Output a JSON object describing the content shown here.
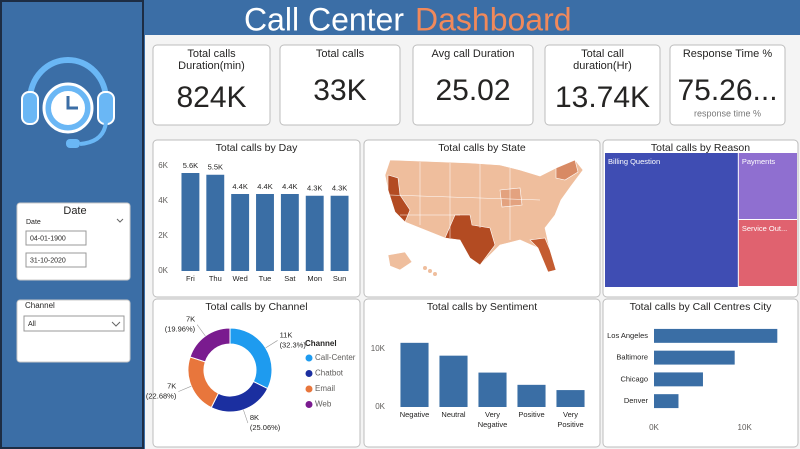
{
  "header": {
    "title_main": "Call Center",
    "title_accent": "Dashboard"
  },
  "kpis": [
    {
      "label": [
        "Total calls",
        "Duration(min)"
      ],
      "value": "824K"
    },
    {
      "label": [
        "Total calls"
      ],
      "value": "33K"
    },
    {
      "label": [
        "Avg call Duration"
      ],
      "value": "25.02"
    },
    {
      "label": [
        "Total call",
        "duration(Hr)"
      ],
      "value": "13.74K"
    },
    {
      "label": [
        "Response Time %"
      ],
      "value": "75.26...",
      "sublabel": "response time %"
    }
  ],
  "date_filter": {
    "title": "Date",
    "label": "Date",
    "start": "04-01-1900",
    "end": "31-10-2020"
  },
  "channel_filter": {
    "title": "Channel",
    "value": "All"
  },
  "chart_data": [
    {
      "type": "bar",
      "title": "Total calls by Day",
      "categories": [
        "Fri",
        "Thu",
        "Wed",
        "Tue",
        "Sat",
        "Mon",
        "Sun"
      ],
      "values": [
        5600,
        5500,
        4400,
        4400,
        4400,
        4300,
        4300
      ],
      "value_labels": [
        "5.6K",
        "5.5K",
        "4.4K",
        "4.4K",
        "4.4K",
        "4.3K",
        "4.3K"
      ],
      "color": "#3a6ea5",
      "ylim": [
        0,
        6000
      ],
      "yticks": [
        {
          "value": 0,
          "label": "0K"
        },
        {
          "value": 2000,
          "label": "2K"
        },
        {
          "value": 4000,
          "label": "4K"
        },
        {
          "value": 6000,
          "label": "6K"
        }
      ]
    },
    {
      "type": "map",
      "title": "Total calls by State"
    },
    {
      "type": "treemap",
      "title": "Total calls by Reason",
      "categories": [
        "Billing Question",
        "Payments",
        "Service Out..."
      ],
      "values": [
        23000,
        5000,
        5000
      ],
      "colors": [
        "#3f4db3",
        "#8f6fd0",
        "#e0626f"
      ]
    },
    {
      "type": "donut",
      "title": "Total calls by Channel",
      "legend_title": "Channel",
      "categories": [
        "Call-Center",
        "Chatbot",
        "Email",
        "Web"
      ],
      "values": [
        32.3,
        25.06,
        22.68,
        19.96
      ],
      "count_labels": [
        "11K",
        "8K",
        "7K",
        "7K"
      ],
      "value_labels": [
        "(32.3%)",
        "(25.06%)",
        "(22.68%)",
        "(19.96%)"
      ],
      "colors": [
        "#1e9bef",
        "#1b2fa0",
        "#e8763c",
        "#7a1b8f"
      ]
    },
    {
      "type": "bar",
      "title": "Total calls by Sentiment",
      "categories": [
        "Negative",
        "Neutral",
        "Very Negative",
        "Positive",
        "Very Positive"
      ],
      "values": [
        11000,
        8800,
        5900,
        3800,
        2900
      ],
      "color": "#3a6ea5",
      "ylim": [
        0,
        12000
      ],
      "yticks": [
        {
          "value": 0,
          "label": "0K"
        },
        {
          "value": 10000,
          "label": "10K"
        }
      ]
    },
    {
      "type": "hbar",
      "title": "Total calls by Call Centres City",
      "categories": [
        "Los Angeles",
        "Baltimore",
        "Chicago",
        "Denver"
      ],
      "values": [
        13600,
        8900,
        5400,
        2700
      ],
      "color": "#3a6ea5",
      "xlim": [
        0,
        15000
      ],
      "xticks": [
        {
          "value": 0,
          "label": "0K"
        },
        {
          "value": 10000,
          "label": "10K"
        }
      ]
    }
  ]
}
